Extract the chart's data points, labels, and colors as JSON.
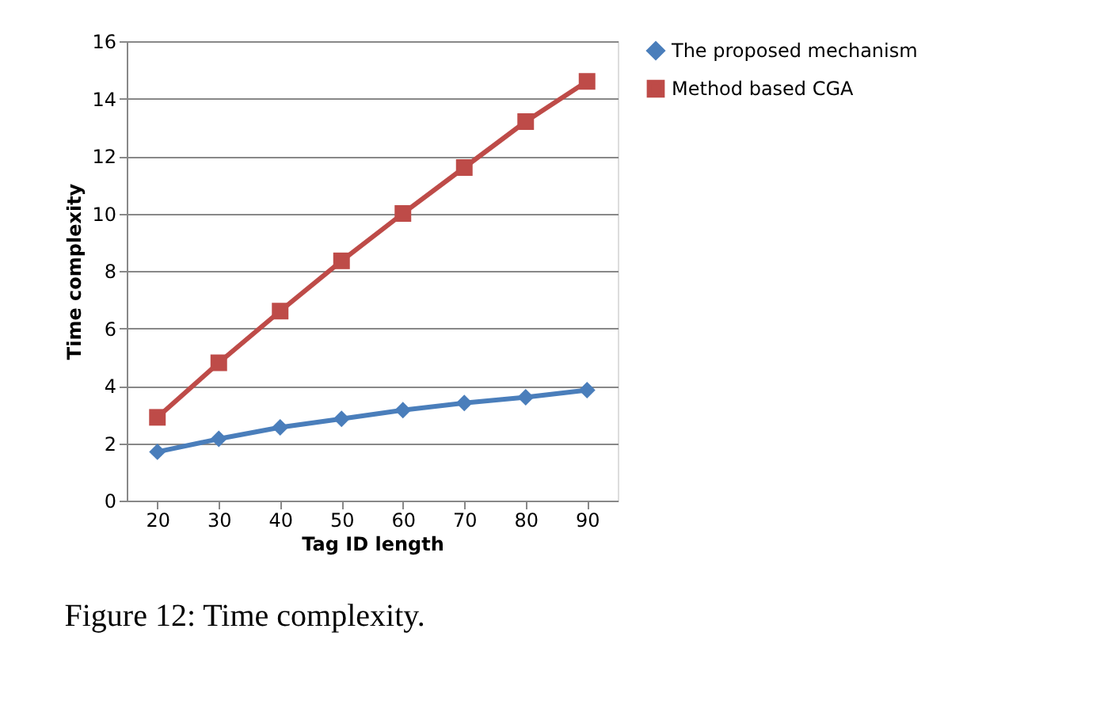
{
  "chart_data": {
    "type": "line",
    "xlabel": "Tag ID length",
    "ylabel": "Time complexity",
    "categories": [
      "20",
      "30",
      "40",
      "50",
      "60",
      "70",
      "80",
      "90"
    ],
    "series": [
      {
        "name": "The proposed mechanism",
        "color": "#4a7ebb",
        "marker": "diamond",
        "values": [
          1.7,
          2.15,
          2.55,
          2.85,
          3.15,
          3.4,
          3.6,
          3.85
        ]
      },
      {
        "name": "Method based CGA",
        "color": "#be4b48",
        "marker": "square",
        "values": [
          2.9,
          4.8,
          6.6,
          8.35,
          10.0,
          11.6,
          13.2,
          14.6
        ]
      }
    ],
    "ylim": [
      0,
      16
    ],
    "yticks": [
      0,
      2,
      4,
      6,
      8,
      10,
      12,
      14,
      16
    ],
    "grid": "y",
    "legend": "right",
    "annotations": [
      "Figure 12: Time complexity."
    ]
  }
}
